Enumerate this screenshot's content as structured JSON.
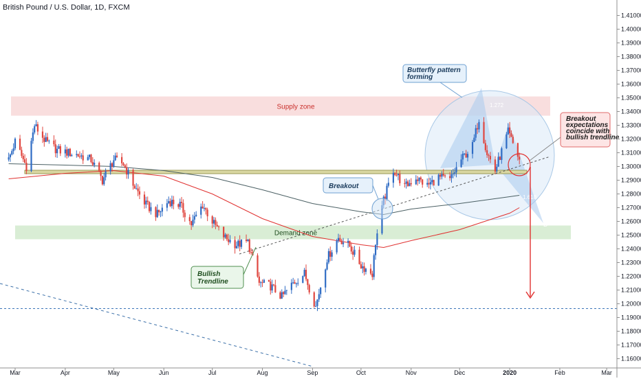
{
  "header": {
    "title": "British Pound / U.S. Dollar, 1D, FXCM"
  },
  "chart_data": {
    "type": "candlestick",
    "title": "British Pound / U.S. Dollar, 1D, FXCM",
    "ylim": [
      1.15,
      1.415
    ],
    "y_ticks": [
      "1.41000",
      "1.40000",
      "1.39000",
      "1.38000",
      "1.37000",
      "1.36000",
      "1.35000",
      "1.34000",
      "1.33000",
      "1.32000",
      "1.31000",
      "1.30000",
      "1.29000",
      "1.28000",
      "1.27000",
      "1.26000",
      "1.25000",
      "1.24000",
      "1.23000",
      "1.22000",
      "1.21000",
      "1.20000",
      "1.19000",
      "1.18000",
      "1.17000",
      "1.16000"
    ],
    "x_ticks": [
      {
        "label": "Mar",
        "bold": false
      },
      {
        "label": "Apr",
        "bold": false
      },
      {
        "label": "May",
        "bold": false
      },
      {
        "label": "Jun",
        "bold": false
      },
      {
        "label": "Jul",
        "bold": false
      },
      {
        "label": "Aug",
        "bold": false
      },
      {
        "label": "Sep",
        "bold": false
      },
      {
        "label": "Oct",
        "bold": false
      },
      {
        "label": "Nov",
        "bold": false
      },
      {
        "label": "Dec",
        "bold": false
      },
      {
        "label": "2020",
        "bold": true
      },
      {
        "label": "Feb",
        "bold": false
      },
      {
        "label": "Mar",
        "bold": false
      }
    ],
    "anchors": [
      [
        "2019-02-25",
        1.305
      ],
      [
        "2019-03-01",
        1.318
      ],
      [
        "2019-03-08",
        1.3
      ],
      [
        "2019-03-13",
        1.33
      ],
      [
        "2019-03-20",
        1.318
      ],
      [
        "2019-03-27",
        1.312
      ],
      [
        "2019-04-03",
        1.31
      ],
      [
        "2019-04-10",
        1.308
      ],
      [
        "2019-04-17",
        1.305
      ],
      [
        "2019-04-24",
        1.29
      ],
      [
        "2019-05-01",
        1.305
      ],
      [
        "2019-05-07",
        1.302
      ],
      [
        "2019-05-14",
        1.285
      ],
      [
        "2019-05-21",
        1.272
      ],
      [
        "2019-05-28",
        1.265
      ],
      [
        "2019-06-04",
        1.275
      ],
      [
        "2019-06-11",
        1.272
      ],
      [
        "2019-06-18",
        1.258
      ],
      [
        "2019-06-25",
        1.272
      ],
      [
        "2019-07-02",
        1.258
      ],
      [
        "2019-07-09",
        1.248
      ],
      [
        "2019-07-16",
        1.243
      ],
      [
        "2019-07-23",
        1.245
      ],
      [
        "2019-07-30",
        1.215
      ],
      [
        "2019-08-06",
        1.213
      ],
      [
        "2019-08-13",
        1.205
      ],
      [
        "2019-08-20",
        1.215
      ],
      [
        "2019-08-27",
        1.222
      ],
      [
        "2019-09-03",
        1.198
      ],
      [
        "2019-09-10",
        1.233
      ],
      [
        "2019-09-17",
        1.248
      ],
      [
        "2019-09-24",
        1.242
      ],
      [
        "2019-10-01",
        1.228
      ],
      [
        "2019-10-08",
        1.222
      ],
      [
        "2019-10-10",
        1.245
      ],
      [
        "2019-10-15",
        1.275
      ],
      [
        "2019-10-21",
        1.298
      ],
      [
        "2019-10-28",
        1.285
      ],
      [
        "2019-11-04",
        1.292
      ],
      [
        "2019-11-11",
        1.286
      ],
      [
        "2019-11-18",
        1.292
      ],
      [
        "2019-11-25",
        1.29
      ],
      [
        "2019-12-02",
        1.305
      ],
      [
        "2019-12-09",
        1.315
      ],
      [
        "2019-12-13",
        1.335
      ],
      [
        "2019-12-18",
        1.31
      ],
      [
        "2019-12-23",
        1.297
      ],
      [
        "2019-12-31",
        1.325
      ],
      [
        "2020-01-07",
        1.305
      ]
    ],
    "indicators": [
      {
        "name": "",
        "color": "#4a5f63",
        "points": [
          [
            "2019-02-25",
            1.302
          ],
          [
            "2019-04-01",
            1.301
          ],
          [
            "2019-05-01",
            1.3
          ],
          [
            "2019-06-01",
            1.297
          ],
          [
            "2019-07-01",
            1.292
          ],
          [
            "2019-08-01",
            1.283
          ],
          [
            "2019-09-01",
            1.273
          ],
          [
            "2019-10-01",
            1.267
          ],
          [
            "2019-10-15",
            1.265
          ],
          [
            "2019-11-01",
            1.269
          ],
          [
            "2019-12-01",
            1.273
          ],
          [
            "2020-01-01",
            1.278
          ],
          [
            "2020-01-07",
            1.279
          ]
        ]
      },
      {
        "name": "",
        "color": "#e0302f",
        "points": [
          [
            "2019-02-25",
            1.291
          ],
          [
            "2019-04-01",
            1.295
          ],
          [
            "2019-05-01",
            1.297
          ],
          [
            "2019-06-01",
            1.293
          ],
          [
            "2019-07-01",
            1.28
          ],
          [
            "2019-08-01",
            1.262
          ],
          [
            "2019-09-01",
            1.249
          ],
          [
            "2019-10-01",
            1.243
          ],
          [
            "2019-10-15",
            1.241
          ],
          [
            "2019-11-01",
            1.246
          ],
          [
            "2019-12-01",
            1.254
          ],
          [
            "2020-01-01",
            1.266
          ],
          [
            "2020-01-07",
            1.27
          ]
        ]
      }
    ],
    "zones": [
      {
        "label": "Supply zone",
        "y_top": 1.351,
        "y_bottom": 1.337,
        "fill": "#f9dede",
        "text_color": "#c9302c"
      },
      {
        "label": "Demand zone",
        "y_top": 1.257,
        "y_bottom": 1.247,
        "fill": "#d9edd5",
        "text_color": "#1f4d1f"
      }
    ],
    "support_level": 1.296,
    "target_level": 1.1965,
    "pattern_points": {
      "D": "D",
      "fib1": "1.272",
      "fib2": "1.618"
    },
    "annotations": {
      "butterfly": "Butterfly pattern forming",
      "breakout": "Breakout",
      "trendline": "Bullish Trendline",
      "expectations": "Breakout expectations coincide with bullish trendline"
    },
    "colors": {
      "up": "#2e6bc4",
      "down": "#e0463f"
    }
  }
}
